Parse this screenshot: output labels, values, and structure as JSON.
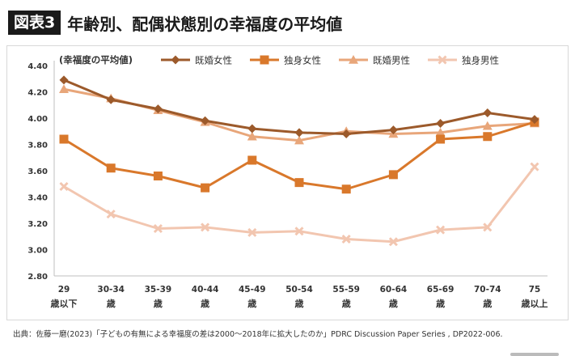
{
  "header": {
    "badge": "図表3",
    "title": "年齢別、配偶状態別の幸福度の平均値"
  },
  "source": "出典：佐藤一磨(2023)「子どもの有無による幸福度の差は2000～2018年に拡大したのか」PDRC Discussion Paper Series , DP2022-006.",
  "chart_data": {
    "type": "line",
    "ylabel": "(幸福度の平均値)",
    "ylim": [
      2.8,
      4.4
    ],
    "yticks": [
      "4.40",
      "4.20",
      "4.00",
      "3.80",
      "3.60",
      "3.40",
      "3.20",
      "3.00",
      "2.80"
    ],
    "categories": [
      [
        "29",
        "歳以下"
      ],
      [
        "30-34",
        "歳"
      ],
      [
        "35-39",
        "歳"
      ],
      [
        "40-44",
        "歳"
      ],
      [
        "45-49",
        "歳"
      ],
      [
        "50-54",
        "歳"
      ],
      [
        "55-59",
        "歳"
      ],
      [
        "60-64",
        "歳"
      ],
      [
        "65-69",
        "歳"
      ],
      [
        "70-74",
        "歳"
      ],
      [
        "75",
        "歳以上"
      ]
    ],
    "grid": false,
    "legend_position": "top",
    "series": [
      {
        "name": "既婚女性",
        "marker": "diamond",
        "color": "#9c5a2b",
        "values": [
          4.29,
          4.14,
          4.07,
          3.98,
          3.92,
          3.89,
          3.88,
          3.91,
          3.96,
          4.04,
          3.99
        ]
      },
      {
        "name": "独身女性",
        "marker": "square",
        "color": "#d9782b",
        "values": [
          3.84,
          3.62,
          3.56,
          3.47,
          3.68,
          3.51,
          3.46,
          3.57,
          3.84,
          3.86,
          3.97
        ]
      },
      {
        "name": "既婚男性",
        "marker": "triangle",
        "color": "#e8a67a",
        "values": [
          4.22,
          4.15,
          4.06,
          3.97,
          3.86,
          3.83,
          3.9,
          3.88,
          3.89,
          3.94,
          3.96
        ]
      },
      {
        "name": "独身男性",
        "marker": "x",
        "color": "#f2c6b0",
        "values": [
          3.48,
          3.27,
          3.16,
          3.17,
          3.13,
          3.14,
          3.08,
          3.06,
          3.15,
          3.17,
          3.63
        ]
      }
    ]
  }
}
